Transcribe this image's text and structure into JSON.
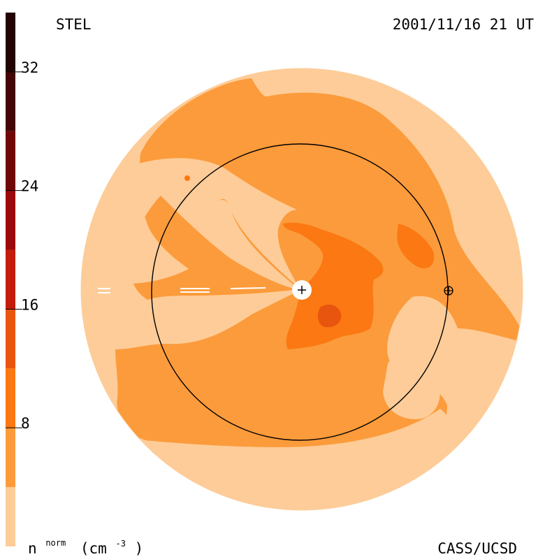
{
  "header": {
    "left_label": "STEL",
    "right_label": "2001/11/16 21 UT"
  },
  "footer": {
    "quantity_symbol": "n",
    "quantity_superscript": "norm",
    "unit_open": "(cm",
    "unit_power": "-3",
    "unit_close": ")",
    "credit": "CASS/UCSD"
  },
  "legend": {
    "ticks": [
      "32",
      "24",
      "16",
      "8"
    ]
  },
  "chart_data": {
    "type": "heatmap",
    "colorbar": {
      "min": 0,
      "max": 36,
      "tick_values": [
        8,
        16,
        24,
        32
      ],
      "tick_labels": [
        "8",
        "16",
        "24",
        "32"
      ],
      "bands": [
        {
          "from": 0,
          "to": 4,
          "color": "#fdcc98"
        },
        {
          "from": 4,
          "to": 8,
          "color": "#fc9b3b"
        },
        {
          "from": 8,
          "to": 12,
          "color": "#fb7812"
        },
        {
          "from": 12,
          "to": 16,
          "color": "#e8550e"
        },
        {
          "from": 16,
          "to": 20,
          "color": "#c31c0d"
        },
        {
          "from": 20,
          "to": 24,
          "color": "#9b0a0a"
        },
        {
          "from": 24,
          "to": 28,
          "color": "#710606"
        },
        {
          "from": 28,
          "to": 32,
          "color": "#430505"
        },
        {
          "from": 32,
          "to": 36,
          "color": "#220202"
        }
      ]
    },
    "rings": [
      {
        "name": "1 AU orbit",
        "radius_au": 1.0
      }
    ],
    "markers": [
      {
        "name": "sun",
        "symbol": "+"
      },
      {
        "name": "earth",
        "symbol": "⊕",
        "radius_au": 1.0,
        "angle_deg": 0
      }
    ]
  }
}
